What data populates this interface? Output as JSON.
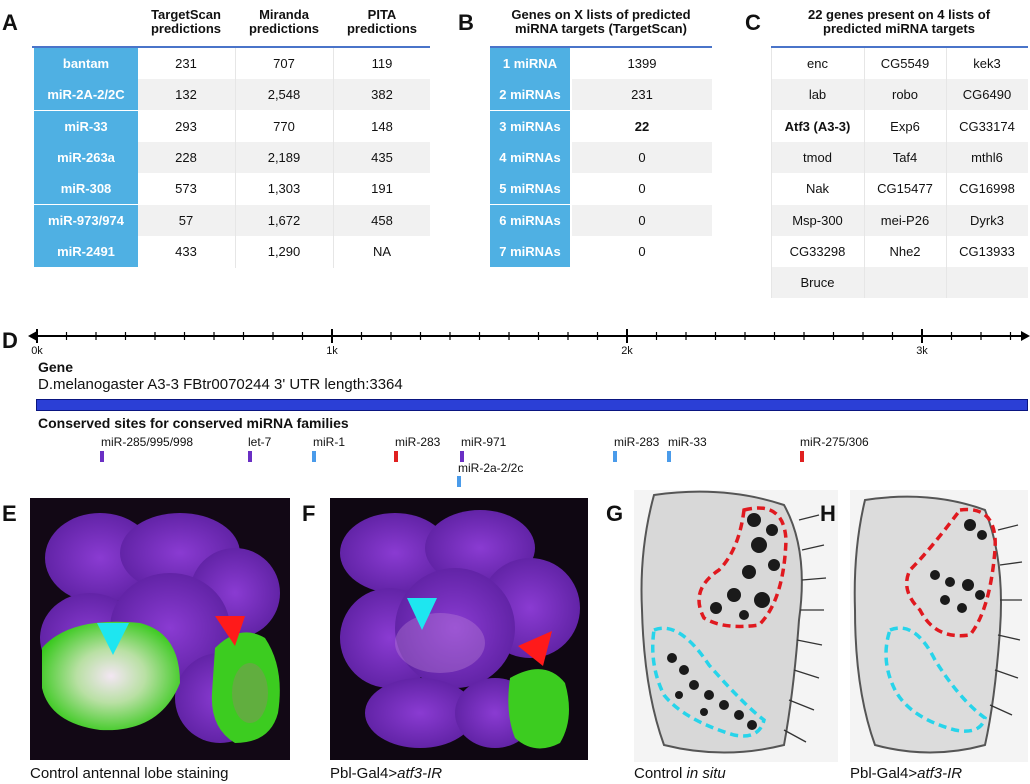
{
  "panelA": {
    "letter": "A",
    "headers": [
      "TargetScan\npredictions",
      "Miranda\npredictions",
      "PITA\npredictions"
    ],
    "rows": [
      {
        "label": "bantam",
        "values": [
          "231",
          "707",
          "119"
        ]
      },
      {
        "label": "miR-2A-2/2C",
        "values": [
          "132",
          "2,548",
          "382"
        ]
      },
      {
        "label": "miR-33",
        "values": [
          "293",
          "770",
          "148"
        ]
      },
      {
        "label": "miR-263a",
        "values": [
          "228",
          "2,189",
          "435"
        ]
      },
      {
        "label": "miR-308",
        "values": [
          "573",
          "1,303",
          "191"
        ]
      },
      {
        "label": "miR-973/974",
        "values": [
          "57",
          "1,672",
          "458"
        ]
      },
      {
        "label": "miR-2491",
        "values": [
          "433",
          "1,290",
          "NA"
        ]
      }
    ]
  },
  "panelB": {
    "letter": "B",
    "title": "Genes on X lists of predicted\nmiRNA targets (TargetScan)",
    "rows": [
      {
        "label": "1 miRNA",
        "value": "1399"
      },
      {
        "label": "2 miRNAs",
        "value": "231"
      },
      {
        "label": "3 miRNAs",
        "value": "22"
      },
      {
        "label": "4 miRNAs",
        "value": "0"
      },
      {
        "label": "5 miRNAs",
        "value": "0"
      },
      {
        "label": "6 miRNAs",
        "value": "0"
      },
      {
        "label": "7 miRNAs",
        "value": "0"
      }
    ]
  },
  "panelC": {
    "letter": "C",
    "title": "22 genes present on 4 lists of\npredicted miRNA targets",
    "genes": [
      [
        "enc",
        "CG5549",
        "kek3"
      ],
      [
        "lab",
        "robo",
        "CG6490"
      ],
      [
        "Atf3 (A3-3)",
        "Exp6",
        "CG33174"
      ],
      [
        "tmod",
        "Taf4",
        "mthl6"
      ],
      [
        "Nak",
        "CG15477",
        "CG16998"
      ],
      [
        "Msp-300",
        "mei-P26",
        "Dyrk3"
      ],
      [
        "CG33298",
        "Nhe2",
        "CG13933"
      ],
      [
        "Bruce",
        "",
        ""
      ]
    ]
  },
  "panelD": {
    "letter": "D",
    "axis_ticks": [
      "0k",
      "1k",
      "2k",
      "3k"
    ],
    "gene_heading": "Gene",
    "gene_desc": "D.melanogaster A3-3 FBtr0070244 3' UTR length:3364",
    "sites_heading": "Conserved sites for conserved miRNA families",
    "sites": [
      {
        "label": "miR-285/995/998",
        "color": "#6a2fc4"
      },
      {
        "label": "let-7",
        "color": "#6a2fc4"
      },
      {
        "label": "miR-1",
        "color": "#4a9bea"
      },
      {
        "label": "miR-283",
        "color": "#e02020"
      },
      {
        "label": "miR-971",
        "color": "#6a2fc4"
      },
      {
        "label": "miR-2a-2/2c",
        "color": "#4a9bea"
      },
      {
        "label": "miR-283",
        "color": "#4a9bea"
      },
      {
        "label": "miR-33",
        "color": "#4a9bea"
      },
      {
        "label": "miR-275/306",
        "color": "#e02020"
      }
    ],
    "utr_color": "#2b3fd6"
  },
  "panelE": {
    "letter": "E",
    "caption": "Control antennal lobe staining"
  },
  "panelF": {
    "letter": "F",
    "caption_pre": "Pbl-Gal4>",
    "caption_it": "atf3-IR"
  },
  "panelG": {
    "letter": "G",
    "caption_pre": "Control ",
    "caption_it": "in situ"
  },
  "panelH": {
    "letter": "H",
    "caption_pre": "Pbl-Gal4>",
    "caption_it": "atf3-IR"
  },
  "colors": {
    "accent": "#4fb0e3",
    "rule": "#4a74c9",
    "cyan": "#00e5f0",
    "red": "#ff1a1a"
  }
}
